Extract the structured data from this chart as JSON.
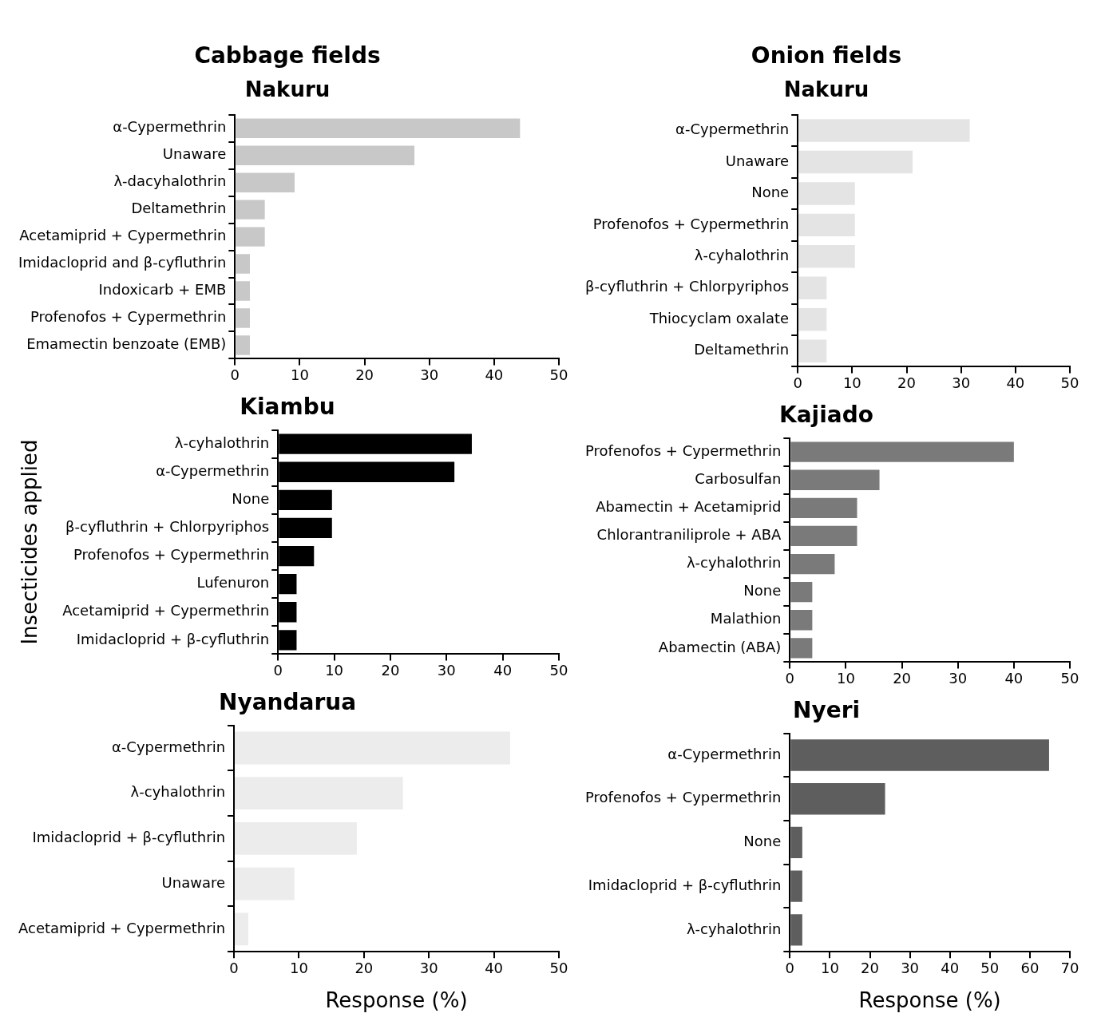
{
  "chart_data": [
    {
      "type": "bar",
      "orientation": "horizontal",
      "title": "Cabbage fields",
      "subtitle": "Nakuru",
      "categories": [
        "α-Cypermethrin",
        "Unaware",
        "λ-dacyhalothrin",
        "Deltamethrin",
        "Acetamiprid + Cypermethrin",
        "Imidacloprid and β-cyfluthrin",
        "Indoxicarb + EMB",
        "Profenofos + Cypermethrin",
        "Emamectin benzoate (EMB)"
      ],
      "values": [
        44,
        27.7,
        9.2,
        4.6,
        4.6,
        2.3,
        2.3,
        2.3,
        2.3
      ],
      "color": "#c8c8c8",
      "xlim": [
        0,
        50
      ],
      "xticks": [
        0,
        10,
        20,
        30,
        40,
        50
      ],
      "grid": false
    },
    {
      "type": "bar",
      "orientation": "horizontal",
      "title": "Onion fields",
      "subtitle": "Nakuru",
      "categories": [
        "α-Cypermethrin",
        "Unaware",
        "None",
        "Profenofos + Cypermethrin",
        "λ-cyhalothrin",
        "β-cyfluthrin + Chlorpyriphos",
        "Thiocyclam oxalate",
        "Deltamethrin"
      ],
      "values": [
        31.6,
        21.1,
        10.5,
        10.5,
        10.5,
        5.3,
        5.3,
        5.3
      ],
      "color": "#e4e4e4",
      "xlim": [
        0,
        50
      ],
      "xticks": [
        0,
        10,
        20,
        30,
        40,
        50
      ],
      "grid": false
    },
    {
      "type": "bar",
      "orientation": "horizontal",
      "title": "Kiambu",
      "ylabel": "Insecticides applied",
      "categories": [
        "λ-cyhalothrin",
        "α-Cypermethrin",
        "None",
        "β-cyfluthrin + Chlorpyriphos",
        "Profenofos + Cypermethrin",
        "Lufenuron",
        "Acetamiprid + Cypermethrin",
        "Imidacloprid + β-cyfluthrin"
      ],
      "values": [
        34.5,
        31.4,
        9.6,
        9.6,
        6.4,
        3.3,
        3.3,
        3.3
      ],
      "color": "#000000",
      "xlim": [
        0,
        50
      ],
      "xticks": [
        0,
        10,
        20,
        30,
        40,
        50
      ],
      "grid": false
    },
    {
      "type": "bar",
      "orientation": "horizontal",
      "title": "Kajiado",
      "categories": [
        "Profenofos + Cypermethrin",
        "Carbosulfan",
        "Abamectin + Acetamiprid",
        "Chlorantraniliprole + ABA",
        "λ-cyhalothrin",
        "None",
        "Malathion",
        "Abamectin (ABA)"
      ],
      "values": [
        40,
        16,
        12,
        12,
        8,
        4,
        4,
        4
      ],
      "color": "#7a7a7a",
      "xlim": [
        0,
        50
      ],
      "xticks": [
        0,
        10,
        20,
        30,
        40,
        50
      ],
      "grid": false
    },
    {
      "type": "bar",
      "orientation": "horizontal",
      "title": "Nyandarua",
      "xlabel": "Response (%)",
      "categories": [
        "α-Cypermethrin",
        "λ-cyhalothrin",
        "Imidacloprid + β-cyfluthrin",
        "Unaware",
        "Acetamiprid + Cypermethrin"
      ],
      "values": [
        42.5,
        26,
        18.9,
        9.3,
        2.2
      ],
      "color": "#ececec",
      "xlim": [
        0,
        50
      ],
      "xticks": [
        0,
        10,
        20,
        30,
        40,
        50
      ],
      "grid": false
    },
    {
      "type": "bar",
      "orientation": "horizontal",
      "title": "Nyeri",
      "xlabel": "Response (%)",
      "categories": [
        "α-Cypermethrin",
        "Profenofos + Cypermethrin",
        "None",
        "Imidacloprid + β-cyfluthrin",
        "λ-cyhalothrin"
      ],
      "values": [
        64.8,
        23.8,
        3.1,
        3.1,
        3.1
      ],
      "color": "#5e5e5e",
      "xlim": [
        0,
        70
      ],
      "xticks": [
        0,
        10,
        20,
        30,
        40,
        50,
        60,
        70
      ],
      "grid": false
    }
  ]
}
